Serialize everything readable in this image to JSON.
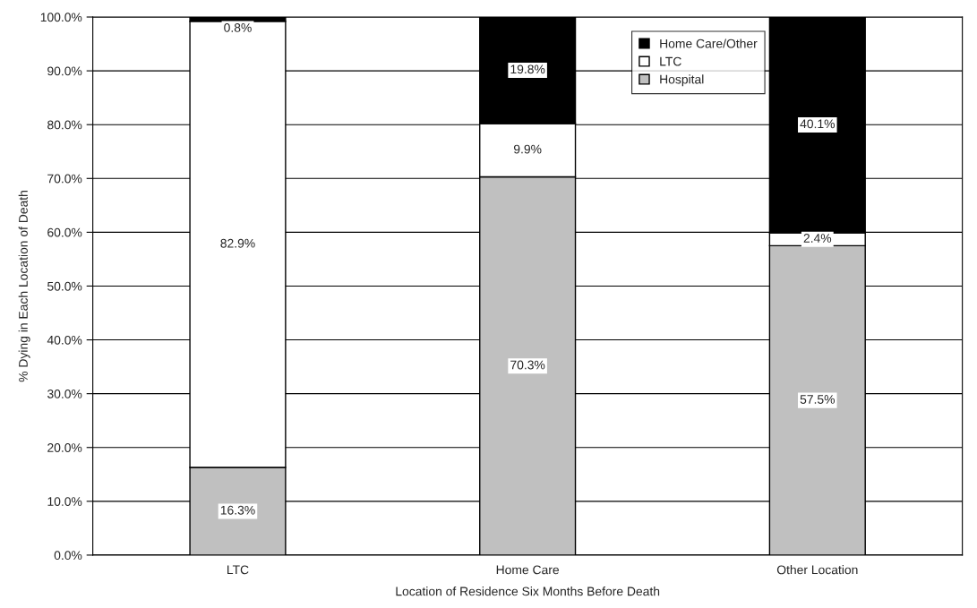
{
  "chart_data": {
    "type": "bar",
    "stacked": true,
    "xlabel": "Location of Residence Six Months Before Death",
    "ylabel": "% Dying in Each Location of Death",
    "categories": [
      "LTC",
      "Home Care",
      "Other Location"
    ],
    "series": [
      {
        "name": "Hospital",
        "color": "#c0c0c0",
        "values": [
          16.3,
          70.3,
          57.5
        ],
        "value_labels": [
          "16.3%",
          "70.3%",
          "57.5%"
        ]
      },
      {
        "name": "LTC",
        "color": "#ffffff",
        "values": [
          82.9,
          9.9,
          2.4
        ],
        "value_labels": [
          "82.9%",
          "9.9%",
          "2.4%"
        ]
      },
      {
        "name": "Home Care/Other",
        "color": "#000000",
        "values": [
          0.8,
          19.8,
          40.1
        ],
        "value_labels": [
          "0.8%",
          "19.8%",
          "40.1%"
        ]
      }
    ],
    "ylim": [
      0,
      100
    ],
    "yticks": [
      {
        "value": 0,
        "label": "0.0%"
      },
      {
        "value": 10,
        "label": "10.0%"
      },
      {
        "value": 20,
        "label": "20.0%"
      },
      {
        "value": 30,
        "label": "30.0%"
      },
      {
        "value": 40,
        "label": "40.0%"
      },
      {
        "value": 50,
        "label": "50.0%"
      },
      {
        "value": 60,
        "label": "60.0%"
      },
      {
        "value": 70,
        "label": "70.0%"
      },
      {
        "value": 80,
        "label": "80.0%"
      },
      {
        "value": 90,
        "label": "90.0%"
      },
      {
        "value": 100,
        "label": "100.0%"
      }
    ],
    "grid": "y",
    "legend": "top right"
  }
}
